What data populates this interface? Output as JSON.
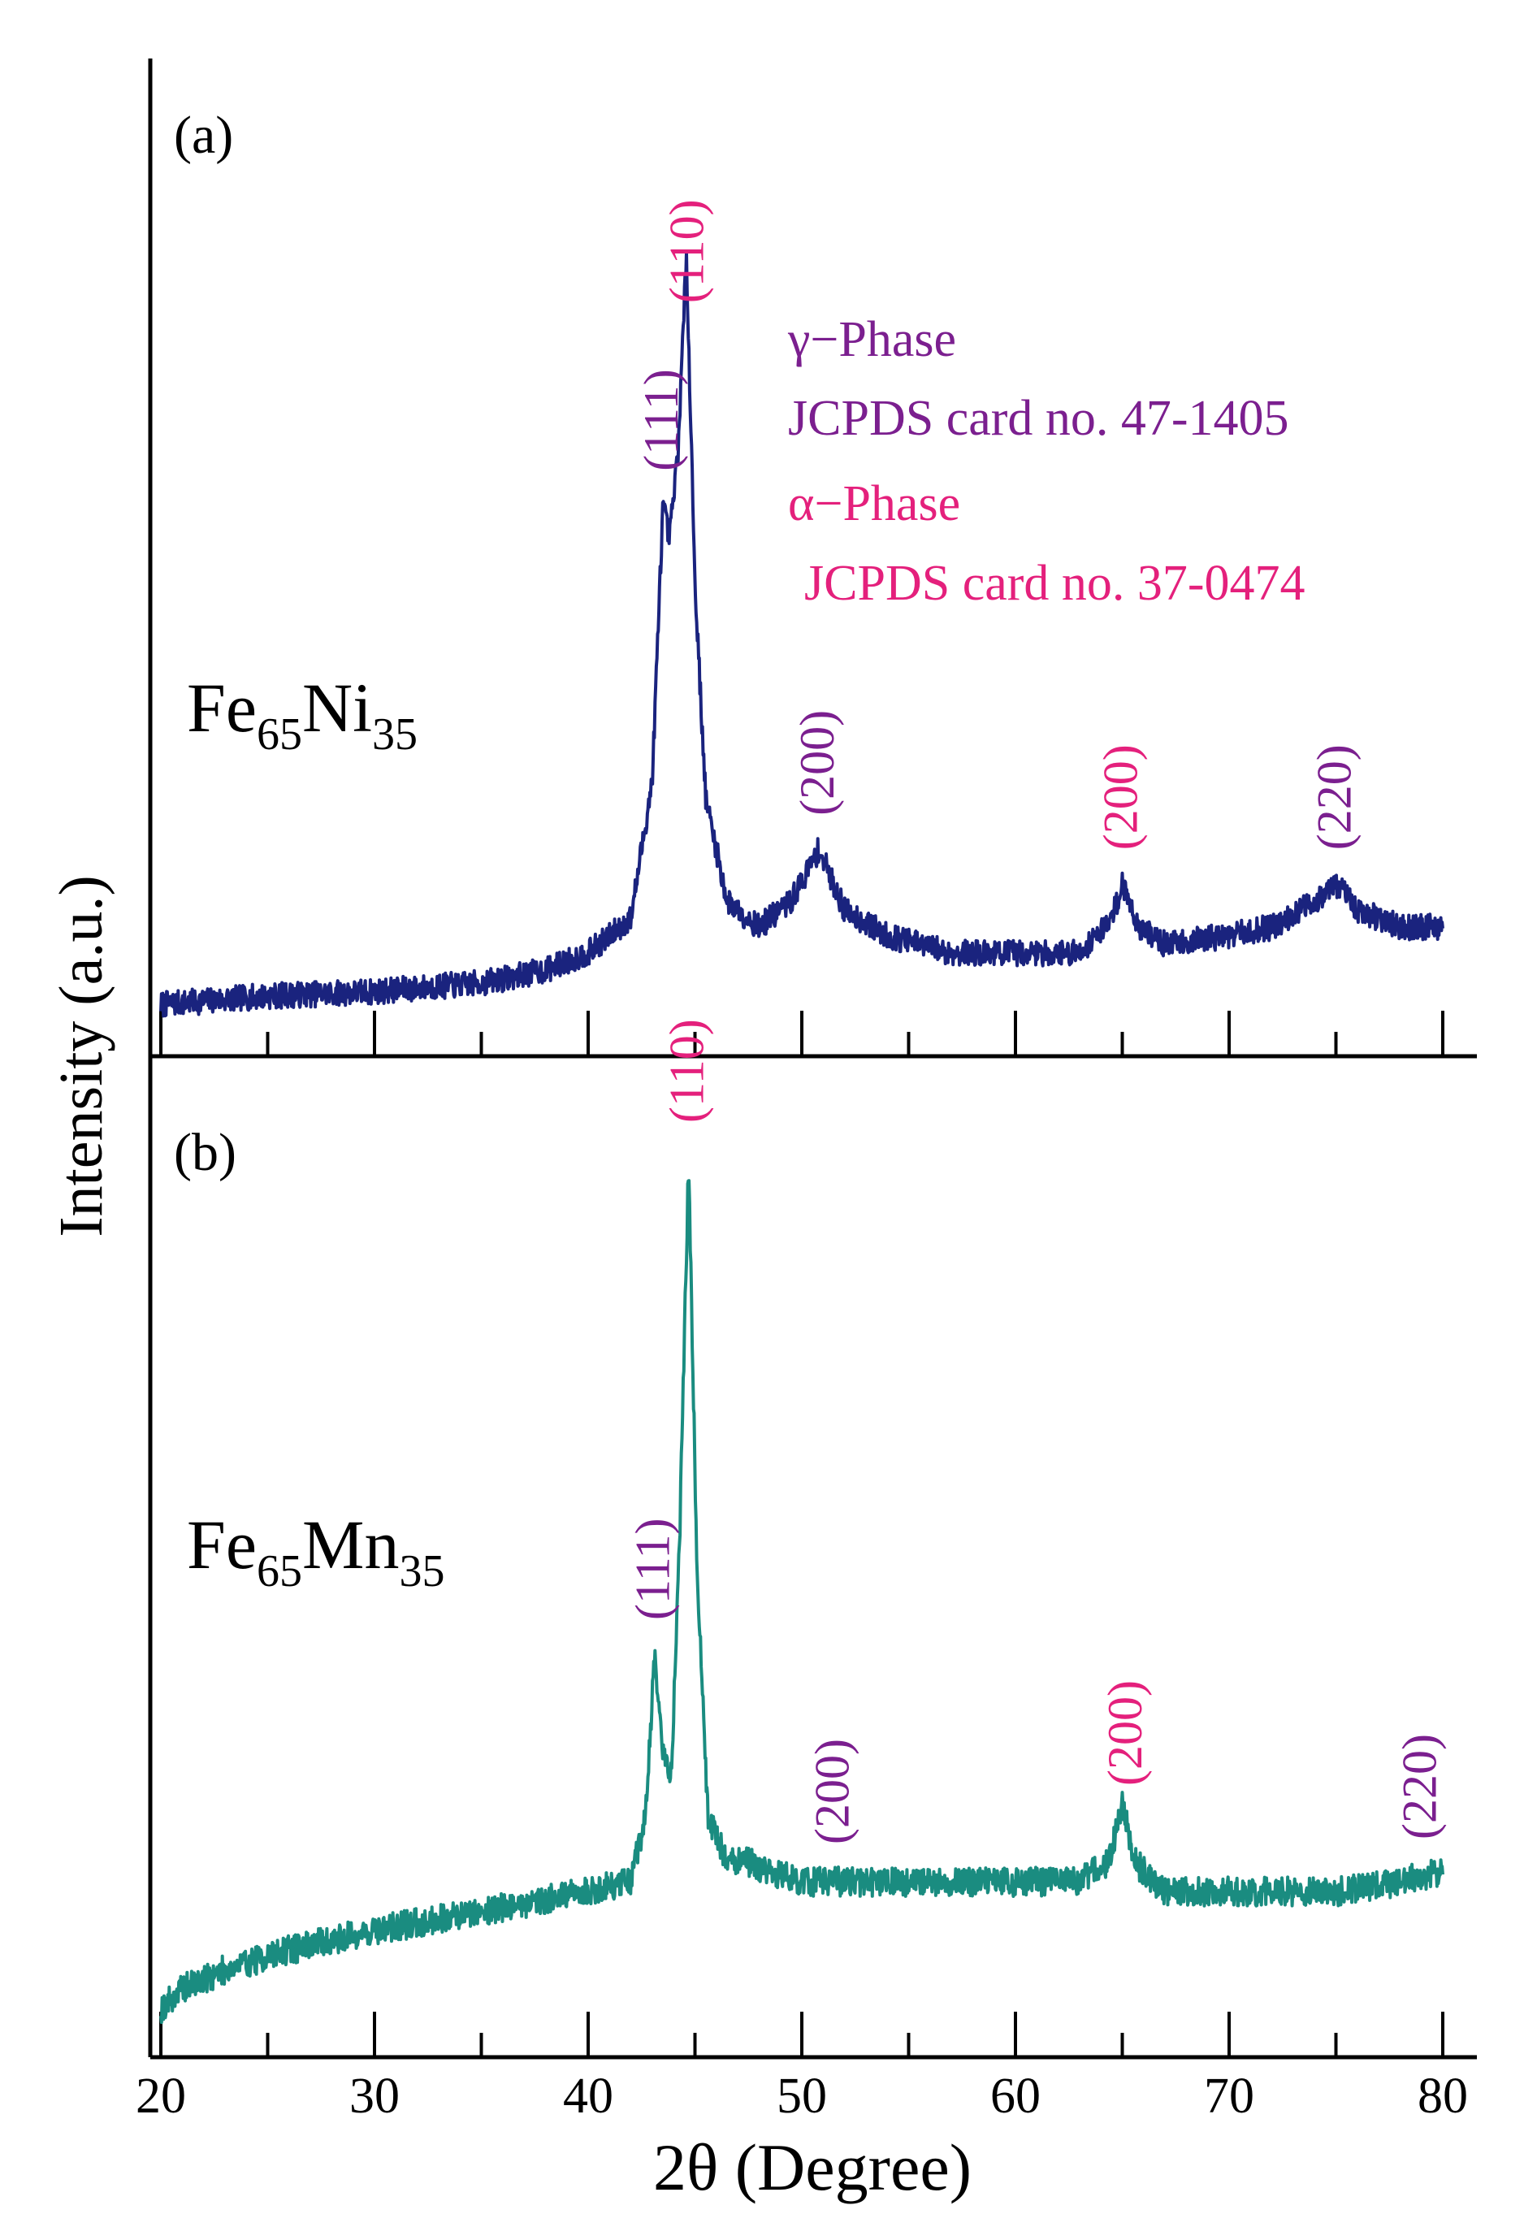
{
  "chart_data": [
    {
      "type": "line",
      "panel_label": "(a)",
      "sample": {
        "base": "Fe",
        "sub1": "65",
        "el2": "Ni",
        "sub2": "35"
      },
      "x_domain": [
        20,
        80
      ],
      "line_color": "#1a237e",
      "series": [
        {
          "name": "Fe65Ni35",
          "points": [
            [
              20,
              0.06
            ],
            [
              25,
              0.07
            ],
            [
              30,
              0.075
            ],
            [
              35,
              0.085
            ],
            [
              38,
              0.1
            ],
            [
              40,
              0.12
            ],
            [
              42,
              0.16
            ],
            [
              43,
              0.32
            ],
            [
              43.5,
              0.64
            ],
            [
              43.8,
              0.6
            ],
            [
              44.2,
              0.7
            ],
            [
              44.6,
              0.93
            ],
            [
              45,
              0.55
            ],
            [
              45.5,
              0.3
            ],
            [
              46.5,
              0.18
            ],
            [
              48,
              0.15
            ],
            [
              49.5,
              0.18
            ],
            [
              50.8,
              0.24
            ],
            [
              52,
              0.17
            ],
            [
              54,
              0.14
            ],
            [
              57,
              0.12
            ],
            [
              60,
              0.12
            ],
            [
              63,
              0.12
            ],
            [
              64.5,
              0.16
            ],
            [
              65,
              0.2
            ],
            [
              65.8,
              0.15
            ],
            [
              67,
              0.13
            ],
            [
              70,
              0.14
            ],
            [
              72,
              0.15
            ],
            [
              74,
              0.18
            ],
            [
              75,
              0.2
            ],
            [
              76,
              0.17
            ],
            [
              78,
              0.15
            ],
            [
              80,
              0.15
            ]
          ]
        }
      ],
      "annotations": [
        {
          "text": "(111)",
          "x": 43.5,
          "color": "#7b1f8f"
        },
        {
          "text": "(110)",
          "x": 44.7,
          "color": "#e4207c"
        },
        {
          "text": "(200)",
          "x": 50.8,
          "color": "#7b1f8f"
        },
        {
          "text": "(200)",
          "x": 65.0,
          "color": "#e4207c"
        },
        {
          "text": "(220)",
          "x": 75.0,
          "color": "#7b1f8f"
        }
      ],
      "legend": {
        "gamma_title": "γ−Phase",
        "gamma_card": "JCPDS card no. 47-1405",
        "gamma_color": "#7b1f8f",
        "alpha_title": "α−Phase",
        "alpha_card": "JCPDS card no. 37-0474",
        "alpha_color": "#e4207c"
      }
    },
    {
      "type": "line",
      "panel_label": "(b)",
      "sample": {
        "base": "Fe",
        "sub1": "65",
        "el2": "Mn",
        "sub2": "35"
      },
      "x_domain": [
        20,
        80
      ],
      "line_color": "#1a8c80",
      "series": [
        {
          "name": "Fe65Mn35",
          "points": [
            [
              20,
              0.05
            ],
            [
              21,
              0.07
            ],
            [
              23,
              0.09
            ],
            [
              26,
              0.11
            ],
            [
              30,
              0.13
            ],
            [
              35,
              0.15
            ],
            [
              40,
              0.17
            ],
            [
              42,
              0.18
            ],
            [
              42.7,
              0.25
            ],
            [
              43.1,
              0.41
            ],
            [
              43.5,
              0.31
            ],
            [
              43.9,
              0.29
            ],
            [
              44.3,
              0.55
            ],
            [
              44.7,
              0.92
            ],
            [
              45.1,
              0.5
            ],
            [
              45.6,
              0.25
            ],
            [
              46.5,
              0.2
            ],
            [
              47.5,
              0.2
            ],
            [
              48.5,
              0.19
            ],
            [
              50,
              0.18
            ],
            [
              55,
              0.18
            ],
            [
              60,
              0.18
            ],
            [
              63,
              0.18
            ],
            [
              64.4,
              0.2
            ],
            [
              65,
              0.26
            ],
            [
              65.6,
              0.2
            ],
            [
              67,
              0.17
            ],
            [
              70,
              0.17
            ],
            [
              75,
              0.17
            ],
            [
              78,
              0.18
            ],
            [
              80,
              0.19
            ]
          ]
        }
      ],
      "annotations": [
        {
          "text": "(111)",
          "x": 43.1,
          "color": "#7b1f8f"
        },
        {
          "text": "(110)",
          "x": 44.7,
          "color": "#e4207c"
        },
        {
          "text": "(200)",
          "x": 51.5,
          "color": "#7b1f8f"
        },
        {
          "text": "(200)",
          "x": 65.2,
          "color": "#e4207c"
        },
        {
          "text": "(220)",
          "x": 79.0,
          "color": "#7b1f8f"
        }
      ]
    }
  ],
  "axes": {
    "ylabel": "Intensity (a.u.)",
    "xlabel": "2θ (Degree)",
    "xlim": [
      20,
      80
    ],
    "xticks": [
      20,
      30,
      40,
      50,
      60,
      70,
      80
    ],
    "minor_step": 5
  }
}
